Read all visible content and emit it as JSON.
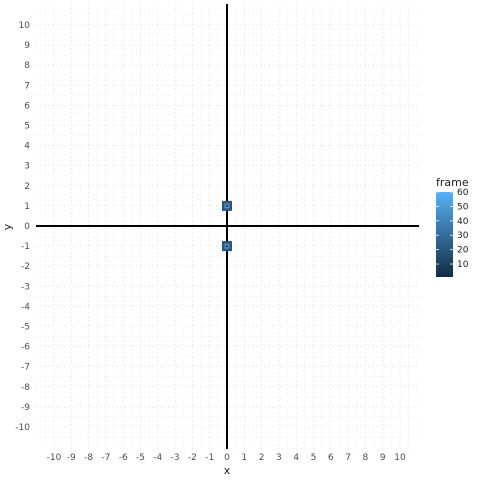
{
  "chart_data": {
    "type": "scatter",
    "title": "",
    "xlabel": "x",
    "ylabel": "y",
    "xlim": [
      -10,
      10
    ],
    "ylim": [
      -10,
      10
    ],
    "x_ticks": [
      -10,
      -9,
      -8,
      -7,
      -6,
      -5,
      -4,
      -3,
      -2,
      -1,
      0,
      1,
      2,
      3,
      4,
      5,
      6,
      7,
      8,
      9,
      10
    ],
    "y_ticks": [
      -10,
      -9,
      -8,
      -7,
      -6,
      -5,
      -4,
      -3,
      -2,
      -1,
      0,
      1,
      2,
      3,
      4,
      5,
      6,
      7,
      8,
      9,
      10
    ],
    "grid": true,
    "points": [
      {
        "x": 0,
        "y": 1,
        "frame": 20
      },
      {
        "x": 0,
        "y": -1,
        "frame": 20
      }
    ],
    "reference_lines": {
      "x": 0,
      "y": 0
    },
    "legend": {
      "title": "frame",
      "position": "right",
      "range": [
        1,
        60
      ],
      "breaks": [
        10,
        20,
        30,
        40,
        50,
        60
      ],
      "color_low": "#132b43",
      "color_high": "#56b1f7"
    }
  }
}
